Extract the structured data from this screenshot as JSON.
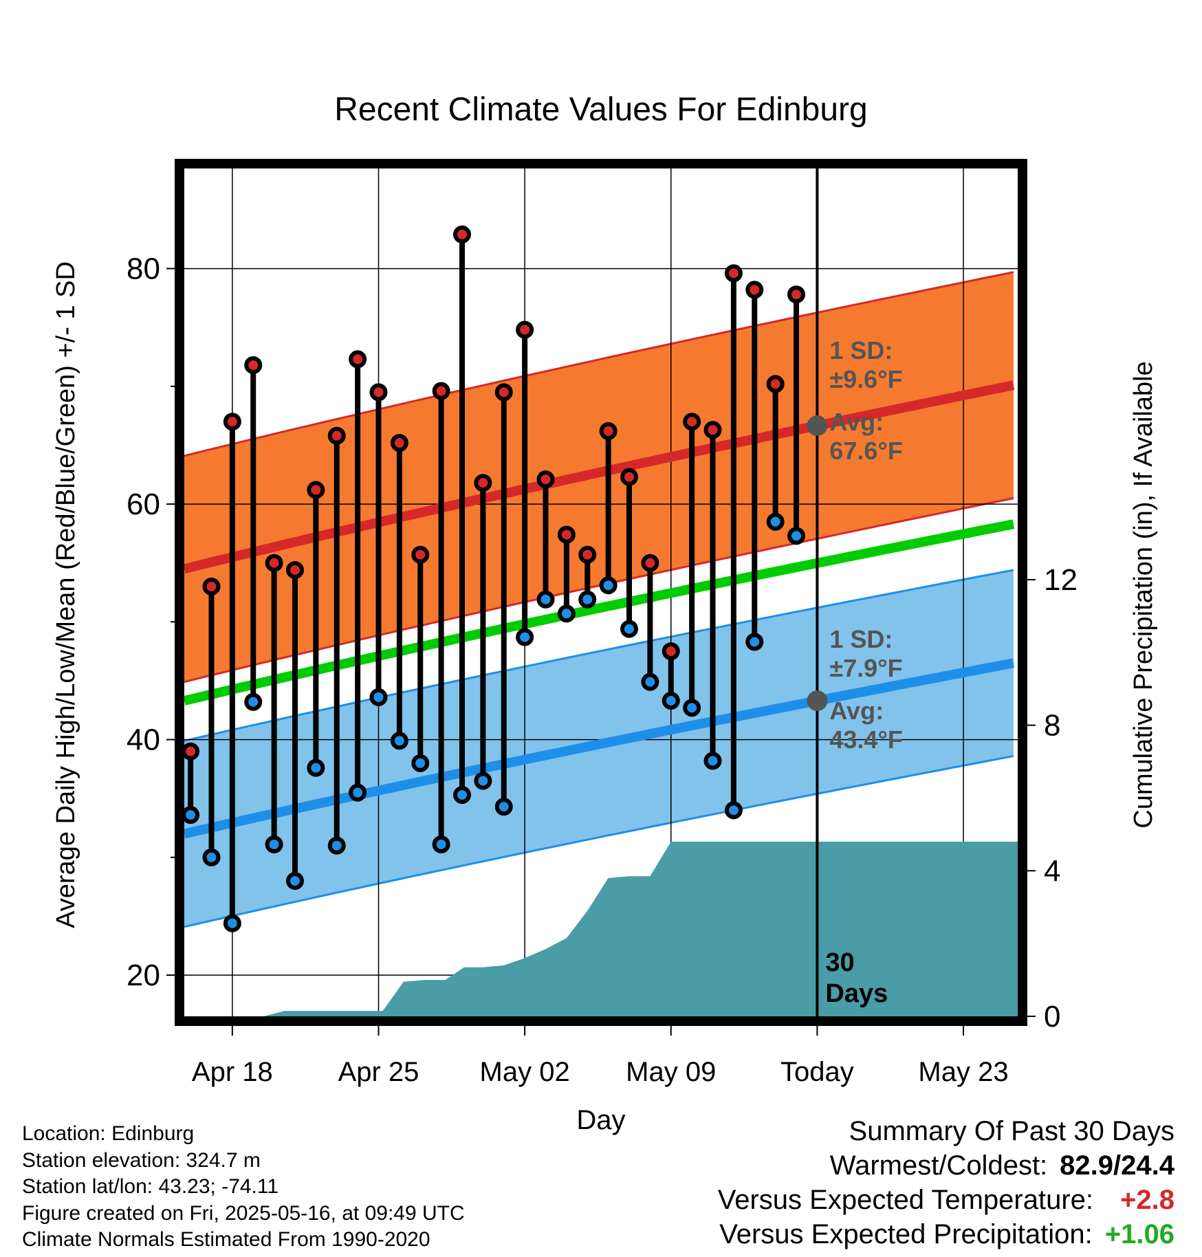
{
  "chart_data": {
    "type": "line",
    "title": "Recent Climate Values For Edinburg",
    "xlabel": "Day",
    "ylabel": "Average Daily High/Low/Mean (Red/Blue/Green) +/- 1 SD",
    "y2label": "Cumulative Precipitation (in), If Available",
    "ylim": [
      16.5,
      88.5
    ],
    "y2lim": [
      0,
      23.3
    ],
    "xlim_days_from_apr16": [
      -0.3,
      39.6
    ],
    "x_tick_labels": [
      "Apr 18",
      "Apr 25",
      "May 02",
      "May 09",
      "Today",
      "May 23"
    ],
    "y_ticks": [
      20,
      40,
      60,
      80
    ],
    "y2_ticks": [
      0,
      4,
      8,
      12
    ],
    "grid": true,
    "today_label": "30\nDays",
    "normal_high": {
      "start": 54.5,
      "end": 70.1,
      "sd": 9.6,
      "avg_label_value": "67.6",
      "color": "#d62828",
      "band_color": "#f57a30"
    },
    "normal_low": {
      "start": 32.0,
      "end": 46.5,
      "sd": 7.9,
      "avg_label_value": "43.4",
      "color": "#1e8fe8",
      "band_color": "#82c3eb"
    },
    "normal_mean": {
      "start": 43.3,
      "end": 58.3,
      "color": "#00cc00"
    },
    "annotations": {
      "high": {
        "sd_label": "1 SD:",
        "sd_value": "±9.6°F",
        "avg_label": "Avg:",
        "avg_value": "67.6°F"
      },
      "low": {
        "sd_label": "1 SD:",
        "sd_value": "±7.9°F",
        "avg_label": "Avg:",
        "avg_value": "43.4°F"
      }
    },
    "series": [
      {
        "name": "High",
        "color": "#d62828",
        "values": [
          39.0,
          53.0,
          67.0,
          71.8,
          55.0,
          54.4,
          61.2,
          65.8,
          72.3,
          69.5,
          65.2,
          55.7,
          69.6,
          82.9,
          61.8,
          69.5,
          74.8,
          62.1,
          57.4,
          55.7,
          66.2,
          62.3,
          55.0,
          47.5,
          67.0,
          66.3,
          79.6,
          78.2,
          70.2,
          77.8
        ]
      },
      {
        "name": "Low",
        "color": "#1e8fe8",
        "values": [
          33.6,
          30.0,
          24.4,
          43.2,
          31.1,
          28.0,
          37.6,
          31.0,
          35.5,
          43.6,
          39.9,
          38.0,
          31.1,
          35.3,
          36.5,
          34.3,
          48.7,
          51.9,
          50.7,
          51.9,
          53.1,
          49.4,
          44.9,
          43.3,
          42.7,
          38.2,
          34.0,
          48.3,
          58.5,
          57.3
        ]
      },
      {
        "name": "Precip",
        "color": "#4a9ca6",
        "dates_day_index": [
          3.5,
          4.5,
          8.8,
          9.2,
          10.2,
          11.2,
          12.2,
          13.1,
          14.0,
          15.0,
          16.0,
          17.0,
          18.0,
          19.0,
          20.0,
          21.0,
          22.0,
          23.0,
          24.3,
          25.0,
          29.9,
          39.6
        ],
        "values": [
          0.0,
          0.15,
          0.15,
          0.15,
          0.95,
          1.0,
          1.0,
          1.35,
          1.35,
          1.4,
          1.6,
          1.85,
          2.15,
          2.9,
          3.8,
          3.85,
          3.85,
          4.8,
          4.8,
          4.8,
          4.8,
          4.8
        ]
      }
    ]
  },
  "footer": {
    "location": "Location: Edinburg",
    "elevation": "Station elevation: 324.7 m",
    "latlon": "Station lat/lon: 43.23; -74.11",
    "created": "Figure created on Fri, 2025-05-16, at 09:49 UTC",
    "normals": "Climate Normals Estimated From 1990-2020"
  },
  "summary": {
    "title": "Summary Of Past 30 Days",
    "warm_cold_label": "Warmest/Coldest:",
    "warm_cold_value": "82.9/24.4",
    "temp_label": "Versus Expected Temperature:",
    "temp_value": "+2.8",
    "temp_color": "#d62828",
    "precip_label": "Versus Expected Precipitation:",
    "precip_value": "+1.06",
    "precip_color": "#22aa22"
  }
}
